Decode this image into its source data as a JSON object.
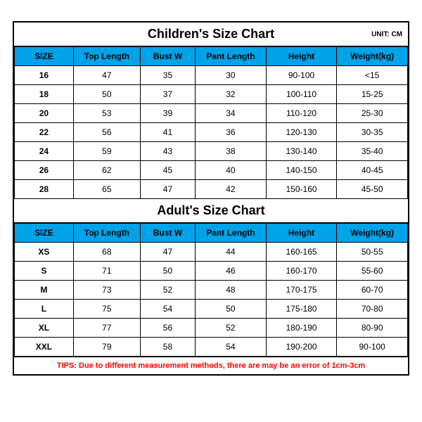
{
  "unit_label": "UNIT: CM",
  "columns": [
    "SIZE",
    "Top Length",
    "Bust W",
    "Pant Length",
    "Height",
    "Weight(kg)"
  ],
  "children": {
    "title": "Children's Size Chart",
    "rows": [
      [
        "16",
        "47",
        "35",
        "30",
        "90-100",
        "<15"
      ],
      [
        "18",
        "50",
        "37",
        "32",
        "100-110",
        "15-25"
      ],
      [
        "20",
        "53",
        "39",
        "34",
        "110-120",
        "25-30"
      ],
      [
        "22",
        "56",
        "41",
        "36",
        "120-130",
        "30-35"
      ],
      [
        "24",
        "59",
        "43",
        "38",
        "130-140",
        "35-40"
      ],
      [
        "26",
        "62",
        "45",
        "40",
        "140-150",
        "40-45"
      ],
      [
        "28",
        "65",
        "47",
        "42",
        "150-160",
        "45-50"
      ]
    ]
  },
  "adult": {
    "title": "Adult's Size Chart",
    "rows": [
      [
        "XS",
        "68",
        "47",
        "44",
        "160-165",
        "50-55"
      ],
      [
        "S",
        "71",
        "50",
        "46",
        "160-170",
        "55-60"
      ],
      [
        "M",
        "73",
        "52",
        "48",
        "170-175",
        "60-70"
      ],
      [
        "L",
        "75",
        "54",
        "50",
        "175-180",
        "70-80"
      ],
      [
        "XL",
        "77",
        "56",
        "52",
        "180-190",
        "80-90"
      ],
      [
        "XXL",
        "79",
        "58",
        "54",
        "190-200",
        "90-100"
      ]
    ]
  },
  "tips": "TIPS: Due to different measurement methods, there are may be an error of 1cm-3cm",
  "colors": {
    "header_bg": "#00a2e8",
    "border": "#000000",
    "tips_text": "#ff0000",
    "background": "#ffffff"
  }
}
